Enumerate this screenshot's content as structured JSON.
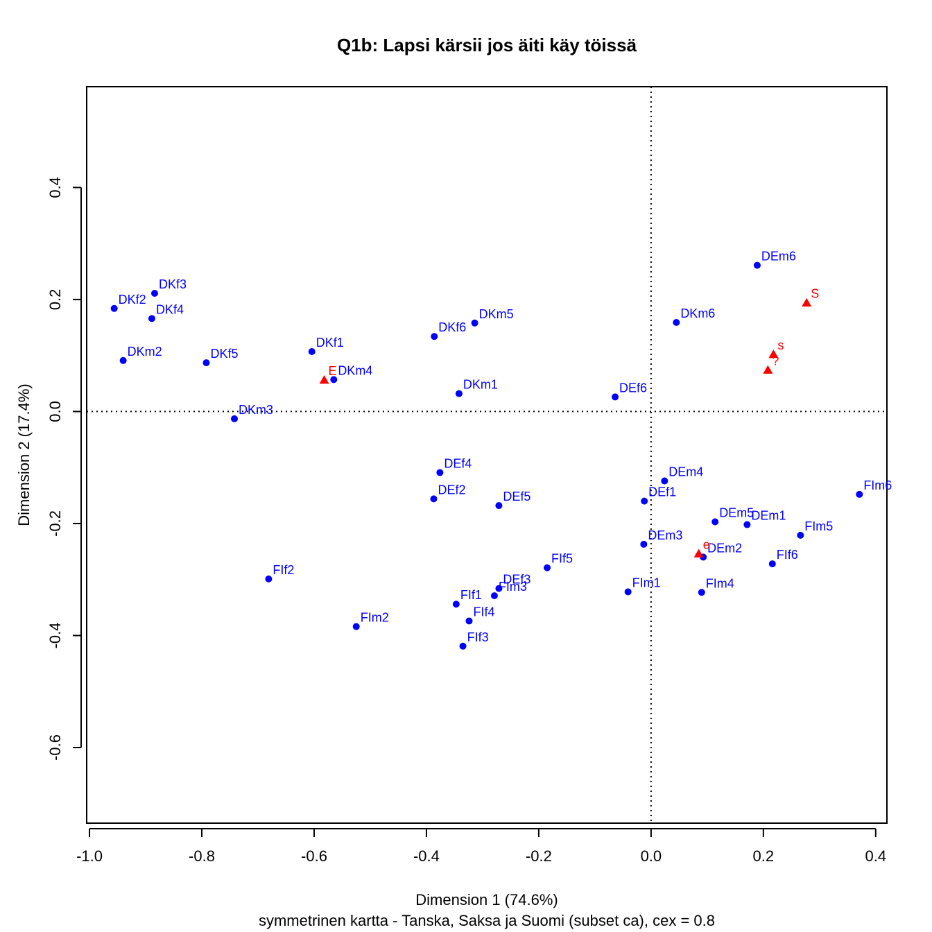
{
  "chart_data": {
    "type": "scatter",
    "title": "Q1b: Lapsi kärsii jos äiti käy töissä",
    "xlabel": "Dimension 1 (74.6%)",
    "ylabel": "Dimension 2 (17.4%)",
    "subtitle": "symmetrinen kartta - Tanska, Saksa ja Suomi (subset ca), cex = 0.8",
    "xlim": [
      -1.005,
      0.42
    ],
    "ylim": [
      -0.735,
      0.58
    ],
    "xticks": [
      "-1.0",
      "-0.8",
      "-0.6",
      "-0.4",
      "-0.2",
      "0.0",
      "0.2",
      "0.4"
    ],
    "yticks": [
      "-0.6",
      "-0.4",
      "-0.2",
      "0.0",
      "0.2",
      "0.4"
    ],
    "reference_lines": {
      "x": 0,
      "y": 0,
      "style": "dotted"
    },
    "colors": {
      "rows": "#0000ff",
      "columns": "#ff0000",
      "axes": "#000000"
    },
    "series": [
      {
        "marker": "circle",
        "color": "#0000ff",
        "points": [
          {
            "label": "DEm6",
            "x": 0.189,
            "y": 0.261
          },
          {
            "label": "DKf3",
            "x": -0.884,
            "y": 0.211
          },
          {
            "label": "DKf2",
            "x": -0.956,
            "y": 0.184
          },
          {
            "label": "DKf4",
            "x": -0.889,
            "y": 0.166
          },
          {
            "label": "DKm5",
            "x": -0.314,
            "y": 0.158
          },
          {
            "label": "DKm6",
            "x": 0.045,
            "y": 0.159
          },
          {
            "label": "DKf6",
            "x": -0.386,
            "y": 0.134
          },
          {
            "label": "DKf1",
            "x": -0.604,
            "y": 0.107
          },
          {
            "label": "DKm2",
            "x": -0.94,
            "y": 0.091
          },
          {
            "label": "DKf5",
            "x": -0.792,
            "y": 0.087
          },
          {
            "label": "DKm4",
            "x": -0.565,
            "y": 0.057
          },
          {
            "label": "DKm1",
            "x": -0.342,
            "y": 0.032
          },
          {
            "label": "DEf6",
            "x": -0.064,
            "y": 0.026
          },
          {
            "label": "DKm3",
            "x": -0.742,
            "y": -0.013
          },
          {
            "label": "DEf4",
            "x": -0.376,
            "y": -0.109
          },
          {
            "label": "DEm4",
            "x": 0.024,
            "y": -0.124
          },
          {
            "label": "FIm6",
            "x": 0.371,
            "y": -0.148
          },
          {
            "label": "DEf2",
            "x": -0.387,
            "y": -0.156
          },
          {
            "label": "DEf1",
            "x": -0.012,
            "y": -0.16
          },
          {
            "label": "DEf5",
            "x": -0.271,
            "y": -0.168
          },
          {
            "label": "DEm5",
            "x": 0.114,
            "y": -0.197
          },
          {
            "label": "DEm1",
            "x": 0.171,
            "y": -0.202
          },
          {
            "label": "FIm5",
            "x": 0.266,
            "y": -0.221
          },
          {
            "label": "DEm3",
            "x": -0.013,
            "y": -0.237
          },
          {
            "label": "DEm2",
            "x": 0.093,
            "y": -0.26
          },
          {
            "label": "FIf6",
            "x": 0.216,
            "y": -0.272
          },
          {
            "label": "FIf5",
            "x": -0.185,
            "y": -0.279
          },
          {
            "label": "FIf2",
            "x": -0.681,
            "y": -0.299
          },
          {
            "label": "DEf3",
            "x": -0.271,
            "y": -0.316
          },
          {
            "label": "FIm1",
            "x": -0.041,
            "y": -0.322
          },
          {
            "label": "FIm4",
            "x": 0.09,
            "y": -0.323
          },
          {
            "label": "FIm3",
            "x": -0.279,
            "y": -0.329
          },
          {
            "label": "FIf1",
            "x": -0.347,
            "y": -0.344
          },
          {
            "label": "FIf4",
            "x": -0.324,
            "y": -0.374
          },
          {
            "label": "FIm2",
            "x": -0.525,
            "y": -0.384
          },
          {
            "label": "FIf3",
            "x": -0.335,
            "y": -0.419
          }
        ]
      },
      {
        "marker": "triangle",
        "color": "#ff0000",
        "points": [
          {
            "label": "S",
            "x": 0.277,
            "y": 0.194
          },
          {
            "label": "s",
            "x": 0.218,
            "y": 0.102
          },
          {
            "label": "?",
            "x": 0.208,
            "y": 0.074
          },
          {
            "label": "E",
            "x": -0.582,
            "y": 0.056
          },
          {
            "label": "e",
            "x": 0.085,
            "y": -0.254
          }
        ]
      }
    ]
  }
}
